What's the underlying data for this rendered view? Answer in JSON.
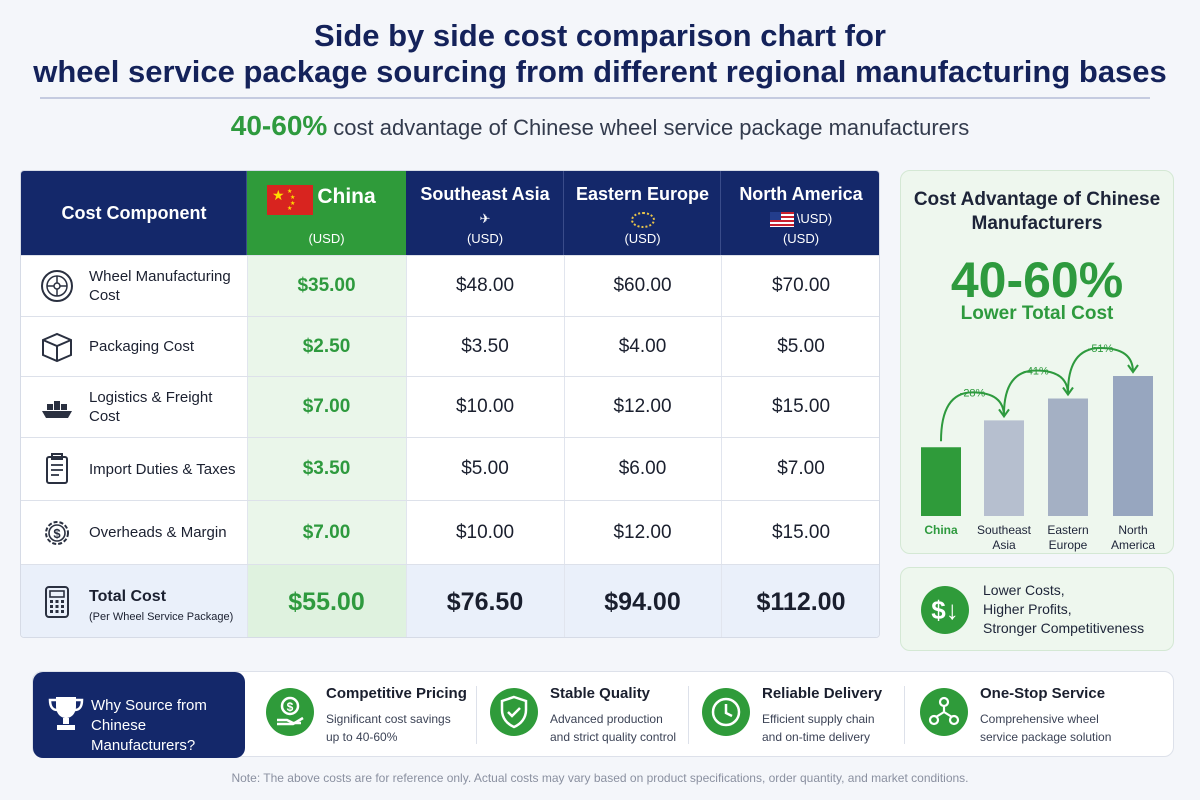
{
  "title_line1": "Side by side cost comparison chart for",
  "title_line2": "wheel service package sourcing from different regional manufacturing bases",
  "subtitle_highlight": "40-60%",
  "subtitle_text": "cost advantage of Chinese wheel service package manufacturers",
  "table": {
    "header_first": "Cost Component",
    "columns": [
      {
        "name": "China",
        "unit": "(USD)"
      },
      {
        "name": "Southeast Asia",
        "unit": "(USD)"
      },
      {
        "name": "Eastern Europe",
        "unit": "(USD)"
      },
      {
        "name": "North America",
        "unit": "(USD)",
        "unit_inline": "\\USD)"
      }
    ],
    "rows": [
      {
        "label": "Wheel Manufacturing Cost",
        "icon": "wheel-icon",
        "values": [
          "$35.00",
          "$48.00",
          "$60.00",
          "$70.00"
        ]
      },
      {
        "label": "Packaging Cost",
        "icon": "box-icon",
        "values": [
          "$2.50",
          "$3.50",
          "$4.00",
          "$5.00"
        ]
      },
      {
        "label": "Logistics & Freight Cost",
        "icon": "ship-icon",
        "values": [
          "$7.00",
          "$10.00",
          "$12.00",
          "$15.00"
        ]
      },
      {
        "label": "Import Duties & Taxes",
        "icon": "clipboard-icon",
        "values": [
          "$3.50",
          "$5.00",
          "$6.00",
          "$7.00"
        ]
      },
      {
        "label": "Overheads & Margin",
        "icon": "gear-dollar-icon",
        "values": [
          "$7.00",
          "$10.00",
          "$12.00",
          "$15.00"
        ]
      }
    ],
    "total": {
      "label": "Total Cost",
      "sublabel": "(Per Wheel Service Package)",
      "icon": "calculator-icon",
      "values": [
        "$55.00",
        "$76.50",
        "$94.00",
        "$112.00"
      ]
    }
  },
  "panel": {
    "heading": "Cost Advantage of Chinese Manufacturers",
    "big": "40-60%",
    "big_sub": "Lower Total Cost"
  },
  "chart_data": {
    "type": "bar",
    "categories": [
      "China",
      "Southeast Asia",
      "Eastern Europe",
      "North America"
    ],
    "values": [
      55.0,
      76.5,
      94.0,
      112.0
    ],
    "annotations": [
      "-28%",
      "-41%",
      "-51%"
    ],
    "colors": [
      "#2f9b3a",
      "#b6bfcf",
      "#a4b0c4",
      "#97a6bf"
    ],
    "ylim": [
      0,
      112
    ]
  },
  "benefit": {
    "icon": "dollar-down-icon",
    "lines": [
      "Lower Costs,",
      "Higher Profits,",
      "Stronger Competitiveness"
    ]
  },
  "why": {
    "line1": "Why Source from",
    "line2": "Chinese Manufacturers?",
    "icon": "trophy-icon"
  },
  "features": [
    {
      "title": "Competitive Pricing",
      "desc1": "Significant cost savings",
      "desc2": "up to 40-60%",
      "icon": "hand-dollar-icon"
    },
    {
      "title": "Stable Quality",
      "desc1": "Advanced production",
      "desc2": "and strict quality control",
      "icon": "shield-icon"
    },
    {
      "title": "Reliable Delivery",
      "desc1": "Efficient supply chain",
      "desc2": "and on-time delivery",
      "icon": "clock-icon"
    },
    {
      "title": "One-Stop Service",
      "desc1": "Comprehensive wheel",
      "desc2": "service package solution",
      "icon": "network-icon"
    }
  ],
  "note": "Note: The above costs are for reference only. Actual costs may vary based on product specifications, order quantity, and market conditions."
}
